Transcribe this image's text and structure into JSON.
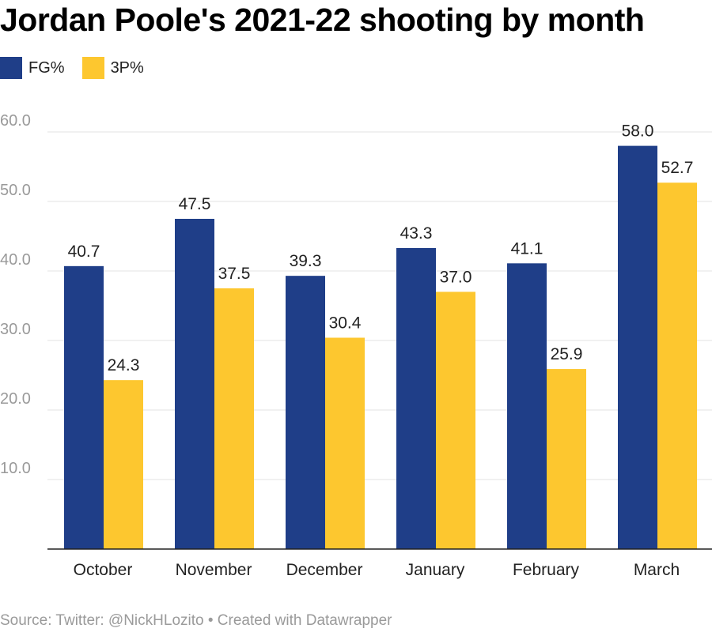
{
  "title": "Jordan Poole's 2021-22 shooting by month",
  "footer": "Source: Twitter: @NickHLozito • Created with Datawrapper",
  "colors": {
    "fg": "#1f3e88",
    "three": "#fdc72f",
    "grid": "#e3e3e3",
    "axis": "#222222",
    "tick": "#9a9a9a"
  },
  "chart_data": {
    "type": "bar",
    "title": "Jordan Poole's 2021-22 shooting by month",
    "xlabel": "",
    "ylabel": "",
    "categories": [
      "October",
      "November",
      "December",
      "January",
      "February",
      "March"
    ],
    "series": [
      {
        "name": "FG%",
        "color": "#1f3e88",
        "values": [
          40.7,
          47.5,
          39.3,
          43.3,
          41.1,
          58.0
        ]
      },
      {
        "name": "3P%",
        "color": "#fdc72f",
        "values": [
          24.3,
          37.5,
          30.4,
          37.0,
          25.9,
          52.7
        ]
      }
    ],
    "yticks": [
      "10.0",
      "20.0",
      "30.0",
      "40.0",
      "50.0",
      "60.0"
    ],
    "ylim": [
      0,
      60
    ],
    "grid": true,
    "legend_position": "top-left"
  }
}
